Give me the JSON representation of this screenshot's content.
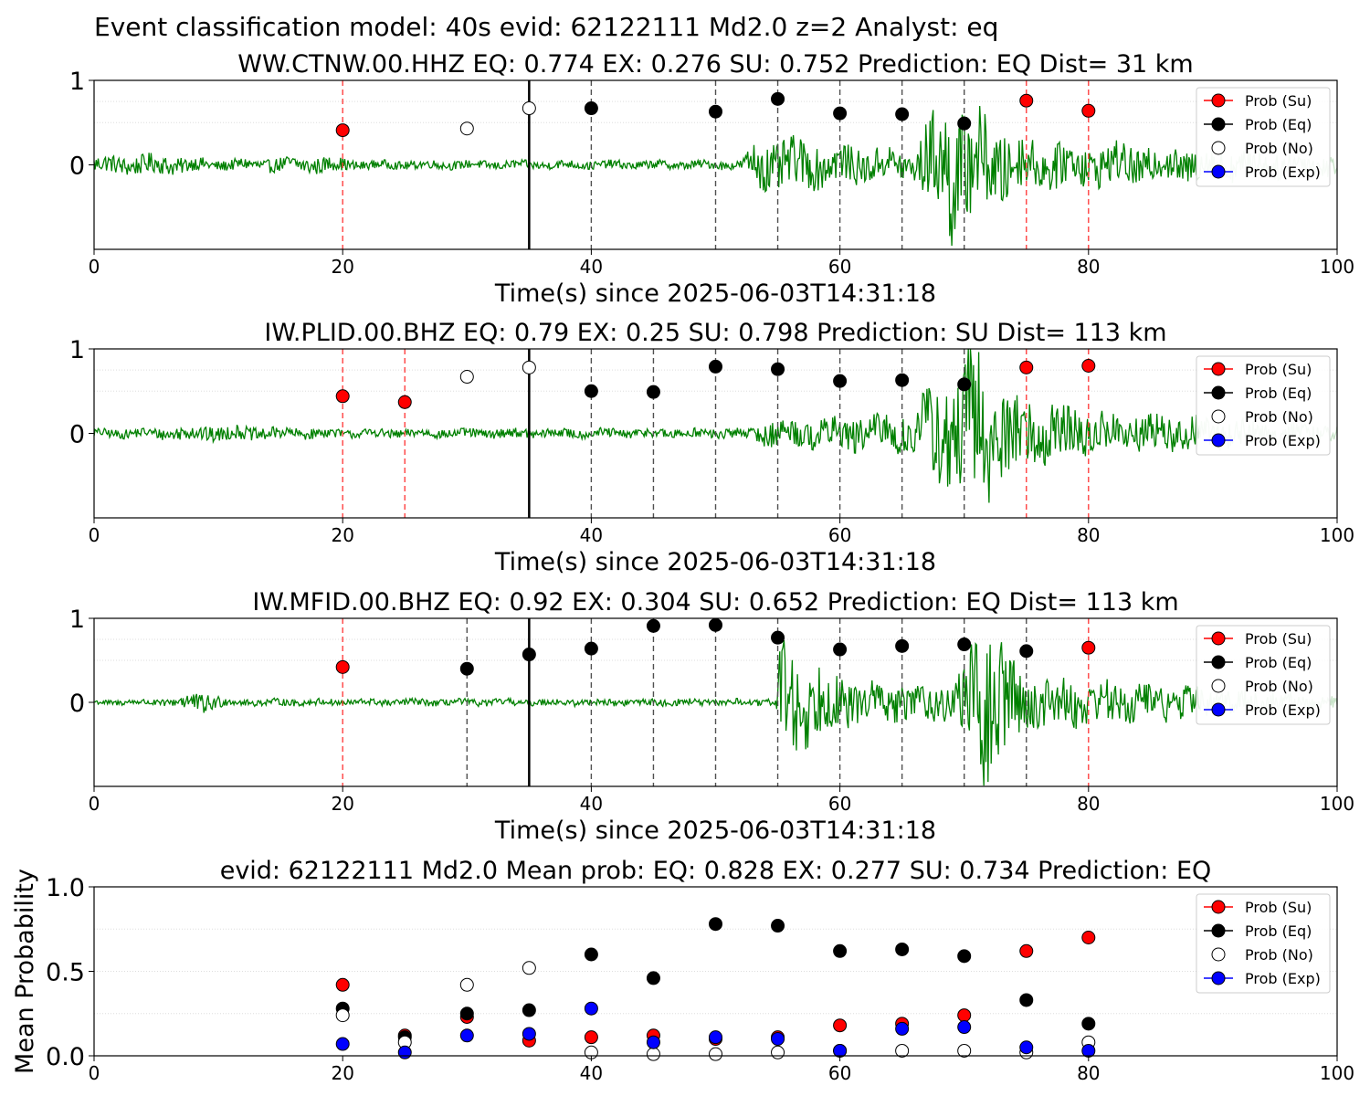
{
  "suptitle": "Event classification model: 40s evid: 62122111 Md2.0 z=2 Analyst: eq",
  "colors": {
    "waveform": "#008000",
    "waveform_faded": "#c8e3c8",
    "su_line": "#ff4040",
    "eq_line": "#505050",
    "pick_line": "#000000",
    "su_marker": "#ff0000",
    "eq_marker": "#000000",
    "no_marker": "#ffffff",
    "exp_marker": "#0000ff"
  },
  "chart_data": [
    {
      "type": "line+scatter",
      "title": "WW.CTNW.00.HHZ   EQ: 0.774  EX: 0.276  SU: 0.752   Prediction: EQ    Dist= 31 km",
      "xlabel": "Time(s) since 2025-06-03T14:31:18",
      "xlim": [
        0,
        100
      ],
      "ylim": [
        -1,
        1
      ],
      "xticks": [
        "0",
        "20",
        "40",
        "60",
        "80",
        "100"
      ],
      "yticks": [
        "0",
        "1"
      ],
      "grid": "horizontal dotted",
      "legend": "top-right",
      "legend_entries": [
        "Prob (Su)",
        "Prob (Eq)",
        "Prob (No)",
        "Prob (Exp)"
      ],
      "pick_time": 35,
      "su_lines": [
        20,
        75,
        80
      ],
      "eq_lines": [
        40,
        50,
        55,
        60,
        65,
        70
      ],
      "points": [
        {
          "x": 20,
          "y": 0.41,
          "cls": "su"
        },
        {
          "x": 30,
          "y": 0.43,
          "cls": "no"
        },
        {
          "x": 35,
          "y": 0.67,
          "cls": "no"
        },
        {
          "x": 40,
          "y": 0.67,
          "cls": "eq"
        },
        {
          "x": 50,
          "y": 0.63,
          "cls": "eq"
        },
        {
          "x": 55,
          "y": 0.78,
          "cls": "eq"
        },
        {
          "x": 60,
          "y": 0.61,
          "cls": "eq"
        },
        {
          "x": 65,
          "y": 0.6,
          "cls": "eq"
        },
        {
          "x": 70,
          "y": 0.49,
          "cls": "eq"
        },
        {
          "x": 75,
          "y": 0.76,
          "cls": "su"
        },
        {
          "x": 80,
          "y": 0.64,
          "cls": "su"
        }
      ],
      "waveform_envelope": [
        {
          "t": 0,
          "a": 0.1
        },
        {
          "t": 5,
          "a": 0.12
        },
        {
          "t": 10,
          "a": 0.06
        },
        {
          "t": 18,
          "a": 0.1
        },
        {
          "t": 22,
          "a": 0.05
        },
        {
          "t": 52,
          "a": 0.05
        },
        {
          "t": 53,
          "a": 0.22
        },
        {
          "t": 54,
          "a": 0.32
        },
        {
          "t": 60,
          "a": 0.22
        },
        {
          "t": 66,
          "a": 0.18
        },
        {
          "t": 67,
          "a": 0.45
        },
        {
          "t": 69,
          "a": 0.85
        },
        {
          "t": 71,
          "a": 0.6
        },
        {
          "t": 75,
          "a": 0.28
        },
        {
          "t": 100,
          "a": 0.12
        }
      ]
    },
    {
      "type": "line+scatter",
      "title": "IW.PLID.00.BHZ   EQ: 0.79  EX: 0.25  SU: 0.798   Prediction: SU    Dist= 113 km",
      "xlabel": "Time(s) since 2025-06-03T14:31:18",
      "xlim": [
        0,
        100
      ],
      "ylim": [
        -1,
        1
      ],
      "xticks": [
        "0",
        "20",
        "40",
        "60",
        "80",
        "100"
      ],
      "yticks": [
        "0",
        "1"
      ],
      "grid": "horizontal dotted",
      "legend": "top-right",
      "legend_entries": [
        "Prob (Su)",
        "Prob (Eq)",
        "Prob (No)",
        "Prob (Exp)"
      ],
      "pick_time": 35,
      "su_lines": [
        20,
        25,
        75,
        80
      ],
      "eq_lines": [
        40,
        45,
        50,
        55,
        60,
        65,
        70
      ],
      "points": [
        {
          "x": 20,
          "y": 0.44,
          "cls": "su"
        },
        {
          "x": 25,
          "y": 0.37,
          "cls": "su"
        },
        {
          "x": 30,
          "y": 0.67,
          "cls": "no"
        },
        {
          "x": 35,
          "y": 0.78,
          "cls": "no"
        },
        {
          "x": 40,
          "y": 0.5,
          "cls": "eq"
        },
        {
          "x": 45,
          "y": 0.49,
          "cls": "eq"
        },
        {
          "x": 50,
          "y": 0.79,
          "cls": "eq"
        },
        {
          "x": 55,
          "y": 0.76,
          "cls": "eq"
        },
        {
          "x": 60,
          "y": 0.62,
          "cls": "eq"
        },
        {
          "x": 65,
          "y": 0.63,
          "cls": "eq"
        },
        {
          "x": 70,
          "y": 0.58,
          "cls": "eq"
        },
        {
          "x": 75,
          "y": 0.78,
          "cls": "su"
        },
        {
          "x": 80,
          "y": 0.8,
          "cls": "su"
        }
      ],
      "waveform_envelope": [
        {
          "t": 0,
          "a": 0.05
        },
        {
          "t": 5,
          "a": 0.06
        },
        {
          "t": 8,
          "a": 0.1
        },
        {
          "t": 20,
          "a": 0.05
        },
        {
          "t": 53,
          "a": 0.06
        },
        {
          "t": 54,
          "a": 0.15
        },
        {
          "t": 60,
          "a": 0.18
        },
        {
          "t": 66,
          "a": 0.25
        },
        {
          "t": 67,
          "a": 0.5
        },
        {
          "t": 71,
          "a": 0.95
        },
        {
          "t": 73,
          "a": 0.5
        },
        {
          "t": 80,
          "a": 0.25
        },
        {
          "t": 100,
          "a": 0.1
        }
      ]
    },
    {
      "type": "line+scatter",
      "title": "IW.MFID.00.BHZ   EQ: 0.92  EX: 0.304  SU: 0.652   Prediction: EQ    Dist= 113 km",
      "xlabel": "Time(s) since 2025-06-03T14:31:18",
      "xlim": [
        0,
        100
      ],
      "ylim": [
        -1,
        1
      ],
      "xticks": [
        "0",
        "20",
        "40",
        "60",
        "80",
        "100"
      ],
      "yticks": [
        "0",
        "1"
      ],
      "grid": "horizontal dotted",
      "legend": "top-right",
      "legend_entries": [
        "Prob (Su)",
        "Prob (Eq)",
        "Prob (No)",
        "Prob (Exp)"
      ],
      "pick_time": 35,
      "su_lines": [
        20,
        80
      ],
      "eq_lines": [
        30,
        40,
        45,
        50,
        55,
        60,
        65,
        70,
        75
      ],
      "points": [
        {
          "x": 20,
          "y": 0.42,
          "cls": "su"
        },
        {
          "x": 30,
          "y": 0.4,
          "cls": "eq"
        },
        {
          "x": 35,
          "y": 0.57,
          "cls": "eq"
        },
        {
          "x": 40,
          "y": 0.64,
          "cls": "eq"
        },
        {
          "x": 45,
          "y": 0.91,
          "cls": "eq"
        },
        {
          "x": 50,
          "y": 0.92,
          "cls": "eq"
        },
        {
          "x": 55,
          "y": 0.77,
          "cls": "eq"
        },
        {
          "x": 60,
          "y": 0.63,
          "cls": "eq"
        },
        {
          "x": 65,
          "y": 0.67,
          "cls": "eq"
        },
        {
          "x": 70,
          "y": 0.69,
          "cls": "eq"
        },
        {
          "x": 75,
          "y": 0.61,
          "cls": "eq"
        },
        {
          "x": 80,
          "y": 0.65,
          "cls": "su"
        }
      ],
      "waveform_envelope": [
        {
          "t": 0,
          "a": 0.03
        },
        {
          "t": 6,
          "a": 0.04
        },
        {
          "t": 7,
          "a": 0.1
        },
        {
          "t": 9,
          "a": 0.12
        },
        {
          "t": 11,
          "a": 0.04
        },
        {
          "t": 54.9,
          "a": 0.04
        },
        {
          "t": 55,
          "a": 0.8
        },
        {
          "t": 57,
          "a": 0.5
        },
        {
          "t": 62,
          "a": 0.22
        },
        {
          "t": 69,
          "a": 0.2
        },
        {
          "t": 70,
          "a": 0.5
        },
        {
          "t": 72,
          "a": 0.95
        },
        {
          "t": 75,
          "a": 0.3
        },
        {
          "t": 100,
          "a": 0.08
        }
      ]
    },
    {
      "type": "scatter",
      "title": "evid: 62122111  Md2.0   Mean prob:   EQ: 0.828  EX: 0.277  SU: 0.734   Prediction: EQ",
      "xlabel": "",
      "ylabel": "Mean Probability",
      "xlim": [
        0,
        100
      ],
      "ylim": [
        0,
        1
      ],
      "xticks": [
        "0",
        "20",
        "40",
        "60",
        "80",
        "100"
      ],
      "yticks": [
        "0.0",
        "0.5",
        "1.0"
      ],
      "grid": "horizontal dotted",
      "legend": "top-right",
      "legend_entries": [
        "Prob (Su)",
        "Prob (Eq)",
        "Prob (No)",
        "Prob (Exp)"
      ],
      "x": [
        20,
        25,
        30,
        35,
        40,
        45,
        50,
        55,
        60,
        65,
        70,
        75,
        80
      ],
      "series": [
        {
          "name": "Prob (Su)",
          "cls": "su",
          "values": [
            0.42,
            0.12,
            0.23,
            0.09,
            0.11,
            0.12,
            0.1,
            0.11,
            0.18,
            0.19,
            0.24,
            0.62,
            0.7
          ]
        },
        {
          "name": "Prob (Eq)",
          "cls": "eq",
          "values": [
            0.28,
            0.11,
            0.25,
            0.27,
            0.6,
            0.46,
            0.78,
            0.77,
            0.62,
            0.63,
            0.59,
            0.33,
            0.19
          ]
        },
        {
          "name": "Prob (No)",
          "cls": "no",
          "values": [
            0.24,
            0.08,
            0.42,
            0.52,
            0.02,
            0.01,
            0.01,
            0.02,
            0.03,
            0.03,
            0.03,
            0.02,
            0.08
          ]
        },
        {
          "name": "Prob (Exp)",
          "cls": "exp",
          "values": [
            0.07,
            0.02,
            0.12,
            0.13,
            0.28,
            0.08,
            0.11,
            0.1,
            0.03,
            0.16,
            0.17,
            0.05,
            0.03
          ]
        }
      ]
    }
  ]
}
